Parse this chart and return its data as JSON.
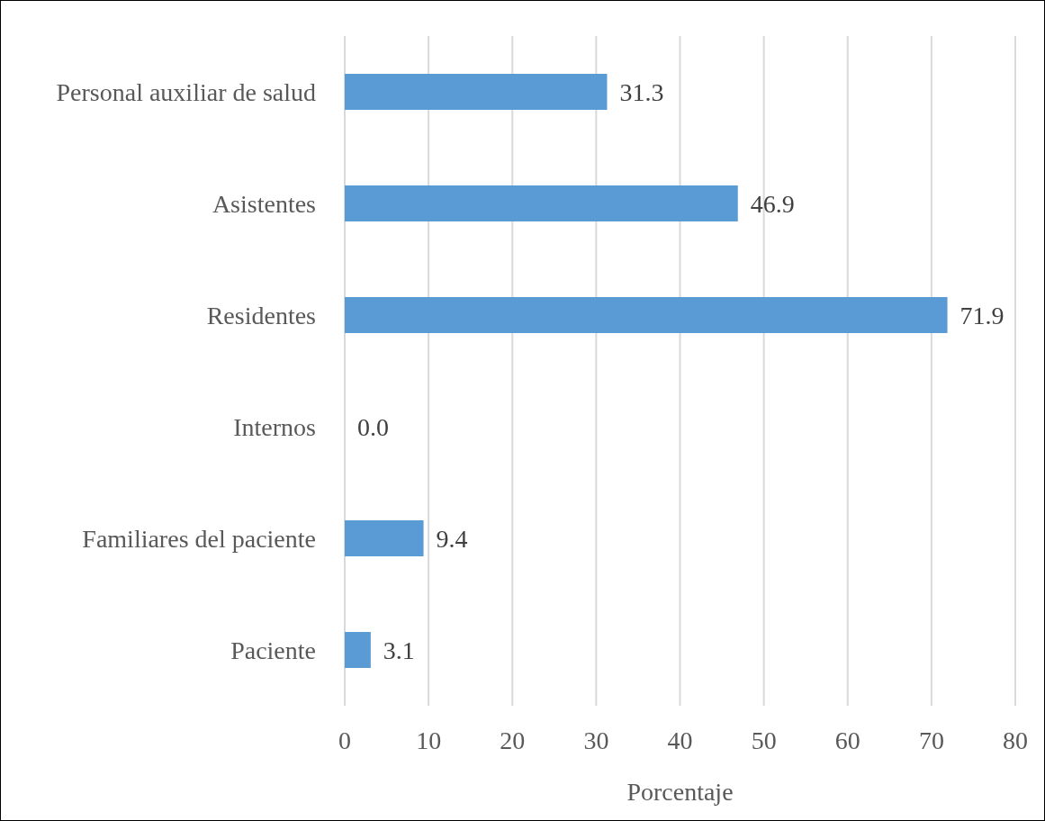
{
  "chart_data": {
    "type": "bar",
    "orientation": "horizontal",
    "xlabel": "Porcentaje",
    "categories": [
      "Personal auxiliar de salud",
      "Asistentes",
      "Residentes",
      "Internos",
      "Familiares del paciente",
      "Paciente"
    ],
    "values": [
      31.3,
      46.9,
      71.9,
      0.0,
      9.4,
      3.1
    ],
    "value_labels": [
      "31.3",
      "46.9",
      "71.9",
      "0.0",
      "9.4",
      "3.1"
    ],
    "color": "#5b9bd5",
    "xlim": [
      0,
      80
    ],
    "xticks": [
      0,
      10,
      20,
      30,
      40,
      50,
      60,
      70,
      80
    ],
    "grid": "x",
    "legend": false
  }
}
